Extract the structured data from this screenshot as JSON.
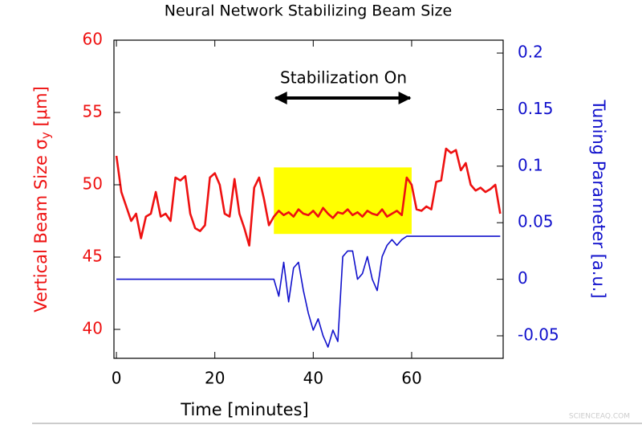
{
  "chart_data": {
    "type": "line",
    "title": "Neural Network Stabilizing Beam Size",
    "x_label": "Time [minutes]",
    "y_label": "Vertical Beam Size σ",
    "y_label_sub": "y",
    "y_label_end": " [μm]",
    "y2_label": "Tuning Parameter [a.u.]",
    "annotation": "Stabilization On",
    "watermark": "SCIENCEAQ.COM",
    "highlight": {
      "x": [
        32,
        60
      ],
      "y": [
        46.6,
        51.2
      ],
      "color": "#ffff00"
    },
    "x": [
      0,
      1,
      2,
      3,
      4,
      5,
      6,
      7,
      8,
      9,
      10,
      11,
      12,
      13,
      14,
      15,
      16,
      17,
      18,
      19,
      20,
      21,
      22,
      23,
      24,
      25,
      26,
      27,
      28,
      29,
      30,
      31,
      32,
      33,
      34,
      35,
      36,
      37,
      38,
      39,
      40,
      41,
      42,
      43,
      44,
      45,
      46,
      47,
      48,
      49,
      50,
      51,
      52,
      53,
      54,
      55,
      56,
      57,
      58,
      59,
      60,
      61,
      62,
      63,
      64,
      65,
      66,
      67,
      68,
      69,
      70,
      71,
      72,
      73,
      74,
      75,
      76,
      77,
      78
    ],
    "series": [
      {
        "name": "Vertical Beam Size",
        "color": "#ee1111",
        "axis": "y",
        "values": [
          52,
          49.5,
          48.5,
          47.5,
          48,
          46.3,
          47.8,
          48,
          49.5,
          47.8,
          48,
          47.5,
          50.5,
          50.3,
          50.6,
          48,
          47,
          46.8,
          47.2,
          50.5,
          50.8,
          50,
          48,
          47.8,
          50.4,
          48,
          47,
          45.8,
          49.8,
          50.5,
          49,
          47.2,
          47.8,
          48.2,
          47.9,
          48.1,
          47.8,
          48.3,
          48,
          47.9,
          48.2,
          47.8,
          48.4,
          48,
          47.7,
          48.1,
          48,
          48.3,
          47.9,
          48.1,
          47.8,
          48.2,
          48,
          47.9,
          48.3,
          47.8,
          48,
          48.2,
          47.9,
          50.5,
          50,
          48.3,
          48.2,
          48.5,
          48.3,
          50.2,
          50.3,
          52.5,
          52.2,
          52.4,
          51,
          51.5,
          50,
          49.6,
          49.8,
          49.5,
          49.7,
          50,
          48
        ]
      },
      {
        "name": "Tuning Parameter",
        "color": "#1111cc",
        "axis": "y2",
        "values": [
          0,
          0,
          0,
          0,
          0,
          0,
          0,
          0,
          0,
          0,
          0,
          0,
          0,
          0,
          0,
          0,
          0,
          0,
          0,
          0,
          0,
          0,
          0,
          0,
          0,
          0,
          0,
          0,
          0,
          0,
          0,
          0,
          0,
          -0.015,
          0.015,
          -0.02,
          0.01,
          0.015,
          -0.01,
          -0.03,
          -0.045,
          -0.035,
          -0.05,
          -0.06,
          -0.045,
          -0.055,
          0.02,
          0.025,
          0.025,
          0,
          0.005,
          0.02,
          0,
          -0.01,
          0.02,
          0.03,
          0.035,
          0.03,
          0.035,
          0.038,
          0.038,
          0.038,
          0.038,
          0.038,
          0.038,
          0.038,
          0.038,
          0.038,
          0.038,
          0.038,
          0.038,
          0.038,
          0.038,
          0.038,
          0.038,
          0.038,
          0.038,
          0.038,
          0.038
        ]
      }
    ],
    "xlim": [
      -0.5,
      78.6
    ],
    "xticks": [
      0,
      20,
      40,
      60
    ],
    "ylim": [
      38,
      60
    ],
    "yticks": [
      40,
      45,
      50,
      55,
      60
    ],
    "y2lim": [
      -0.0699,
      0.2114
    ],
    "y2ticks": [
      -0.05,
      0,
      0.05,
      0.1,
      0.15,
      0.2
    ]
  }
}
